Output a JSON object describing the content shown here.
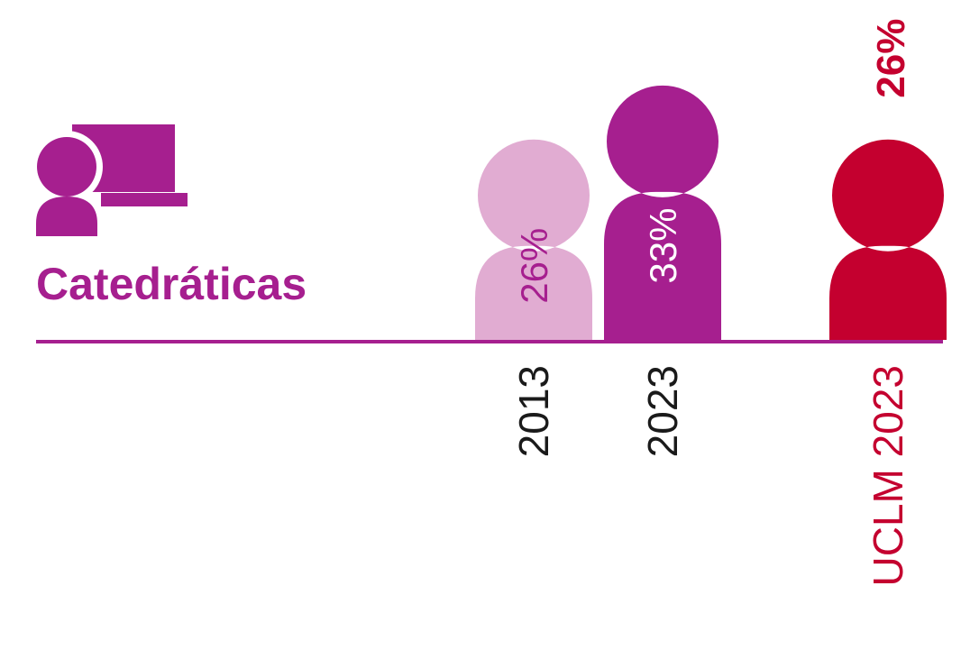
{
  "chart_data": {
    "type": "pictogram",
    "title": "Catedráticas",
    "categories": [
      "2013",
      "2023",
      "UCLM 2023"
    ],
    "values": [
      26,
      33,
      26
    ],
    "value_labels": [
      "26%",
      "33%",
      "26%"
    ],
    "colors": [
      "#e1acd2",
      "#a61f8f",
      "#c4002f"
    ]
  }
}
